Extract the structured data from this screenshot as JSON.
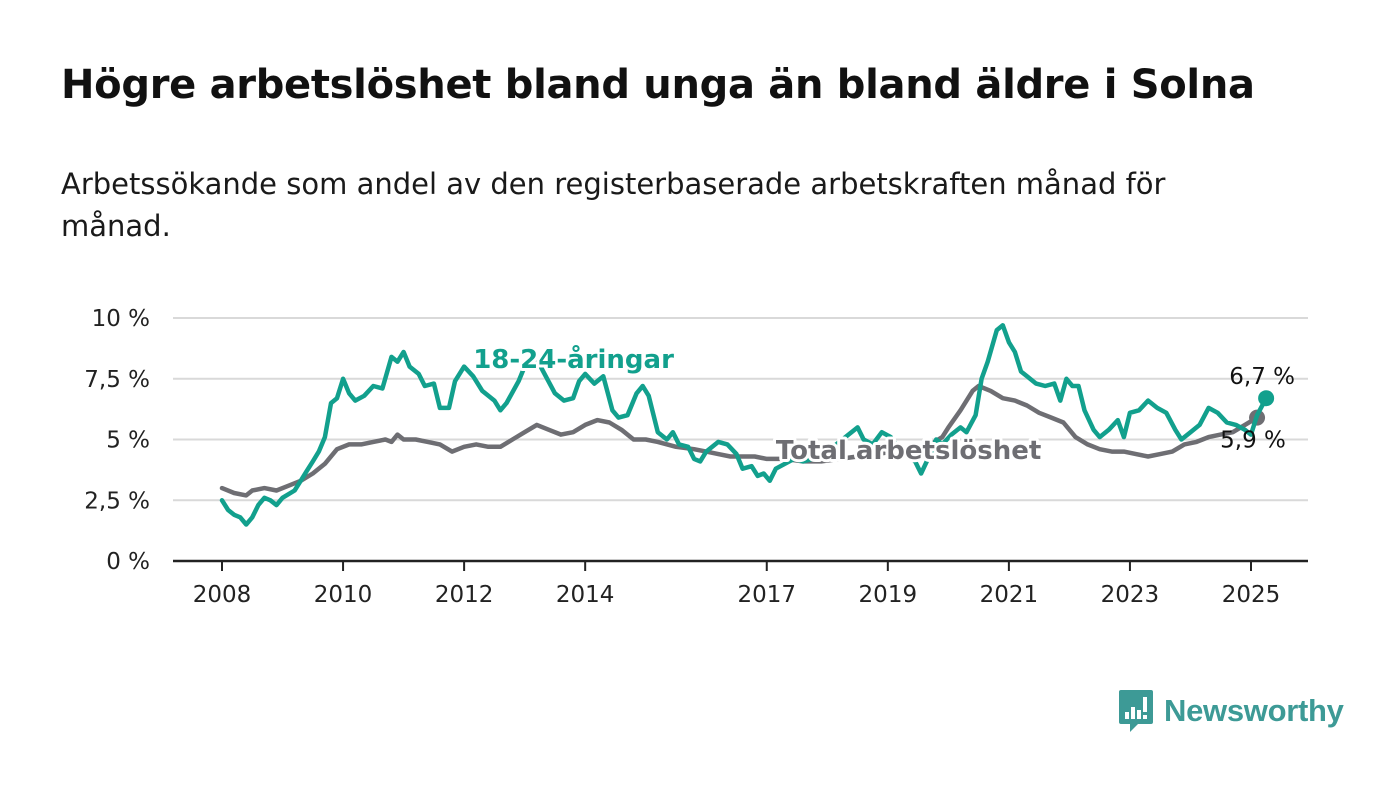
{
  "title": "Högre arbetslöshet bland unga än bland äldre i Solna",
  "subtitle": "Arbetssökande som andel av den registerbaserade arbetskraften månad för månad.",
  "brand": {
    "name": "Newsworthy",
    "color": "#3d9a96"
  },
  "chart_data": {
    "type": "line",
    "y_ticks": [
      {
        "value": 0,
        "label": "0 %"
      },
      {
        "value": 2.5,
        "label": "2,5 %"
      },
      {
        "value": 5,
        "label": "5 %"
      },
      {
        "value": 7.5,
        "label": "7,5 %"
      },
      {
        "value": 10,
        "label": "10 %"
      }
    ],
    "x_ticks": [
      {
        "value": 2008,
        "label": "2008"
      },
      {
        "value": 2010,
        "label": "2010"
      },
      {
        "value": 2012,
        "label": "2012"
      },
      {
        "value": 2014,
        "label": "2014"
      },
      {
        "value": 2017,
        "label": "2017"
      },
      {
        "value": 2019,
        "label": "2019"
      },
      {
        "value": 2021,
        "label": "2021"
      },
      {
        "value": 2023,
        "label": "2023"
      },
      {
        "value": 2025,
        "label": "2025"
      }
    ],
    "xlim": [
      2007.2,
      2025.95
    ],
    "ylim": [
      0,
      10
    ],
    "grid": true,
    "series": [
      {
        "name": "Total arbetslöshet",
        "color": "#6e6e73",
        "end_label": "5,9 %",
        "label_at": [
          2017.15,
          4.2
        ],
        "points": [
          [
            2008.0,
            3.0
          ],
          [
            2008.2,
            2.8
          ],
          [
            2008.4,
            2.7
          ],
          [
            2008.5,
            2.9
          ],
          [
            2008.7,
            3.0
          ],
          [
            2008.9,
            2.9
          ],
          [
            2009.1,
            3.1
          ],
          [
            2009.3,
            3.3
          ],
          [
            2009.5,
            3.6
          ],
          [
            2009.7,
            4.0
          ],
          [
            2009.9,
            4.6
          ],
          [
            2010.1,
            4.8
          ],
          [
            2010.3,
            4.8
          ],
          [
            2010.5,
            4.9
          ],
          [
            2010.7,
            5.0
          ],
          [
            2010.8,
            4.9
          ],
          [
            2010.9,
            5.2
          ],
          [
            2011.0,
            5.0
          ],
          [
            2011.2,
            5.0
          ],
          [
            2011.4,
            4.9
          ],
          [
            2011.6,
            4.8
          ],
          [
            2011.8,
            4.5
          ],
          [
            2012.0,
            4.7
          ],
          [
            2012.2,
            4.8
          ],
          [
            2012.4,
            4.7
          ],
          [
            2012.6,
            4.7
          ],
          [
            2012.8,
            5.0
          ],
          [
            2013.0,
            5.3
          ],
          [
            2013.2,
            5.6
          ],
          [
            2013.4,
            5.4
          ],
          [
            2013.6,
            5.2
          ],
          [
            2013.8,
            5.3
          ],
          [
            2014.0,
            5.6
          ],
          [
            2014.2,
            5.8
          ],
          [
            2014.4,
            5.7
          ],
          [
            2014.6,
            5.4
          ],
          [
            2014.8,
            5.0
          ],
          [
            2015.0,
            5.0
          ],
          [
            2015.2,
            4.9
          ],
          [
            2015.5,
            4.7
          ],
          [
            2015.8,
            4.6
          ],
          [
            2016.0,
            4.5
          ],
          [
            2016.2,
            4.4
          ],
          [
            2016.4,
            4.3
          ],
          [
            2016.6,
            4.3
          ],
          [
            2016.8,
            4.3
          ],
          [
            2017.0,
            4.2
          ],
          [
            2017.3,
            4.2
          ],
          [
            2017.6,
            4.1
          ],
          [
            2017.9,
            4.1
          ],
          [
            2018.2,
            4.2
          ],
          [
            2018.5,
            4.3
          ],
          [
            2018.8,
            4.4
          ],
          [
            2019.1,
            4.5
          ],
          [
            2019.4,
            4.6
          ],
          [
            2019.7,
            4.8
          ],
          [
            2019.9,
            5.1
          ],
          [
            2020.0,
            5.5
          ],
          [
            2020.2,
            6.2
          ],
          [
            2020.4,
            7.0
          ],
          [
            2020.5,
            7.2
          ],
          [
            2020.7,
            7.0
          ],
          [
            2020.9,
            6.7
          ],
          [
            2021.1,
            6.6
          ],
          [
            2021.3,
            6.4
          ],
          [
            2021.5,
            6.1
          ],
          [
            2021.7,
            5.9
          ],
          [
            2021.9,
            5.7
          ],
          [
            2022.1,
            5.1
          ],
          [
            2022.3,
            4.8
          ],
          [
            2022.5,
            4.6
          ],
          [
            2022.7,
            4.5
          ],
          [
            2022.9,
            4.5
          ],
          [
            2023.1,
            4.4
          ],
          [
            2023.3,
            4.3
          ],
          [
            2023.5,
            4.4
          ],
          [
            2023.7,
            4.5
          ],
          [
            2023.9,
            4.8
          ],
          [
            2024.1,
            4.9
          ],
          [
            2024.3,
            5.1
          ],
          [
            2024.5,
            5.2
          ],
          [
            2024.7,
            5.3
          ],
          [
            2024.9,
            5.6
          ],
          [
            2025.1,
            5.9
          ]
        ]
      },
      {
        "name": "18-24-åringar",
        "color": "#12a08d",
        "end_label": "6,7 %",
        "label_at": [
          2012.15,
          7.95
        ],
        "points": [
          [
            2008.0,
            2.5
          ],
          [
            2008.1,
            2.1
          ],
          [
            2008.2,
            1.9
          ],
          [
            2008.3,
            1.8
          ],
          [
            2008.4,
            1.5
          ],
          [
            2008.5,
            1.8
          ],
          [
            2008.6,
            2.3
          ],
          [
            2008.7,
            2.6
          ],
          [
            2008.8,
            2.5
          ],
          [
            2008.9,
            2.3
          ],
          [
            2009.0,
            2.6
          ],
          [
            2009.2,
            2.9
          ],
          [
            2009.3,
            3.3
          ],
          [
            2009.4,
            3.7
          ],
          [
            2009.5,
            4.1
          ],
          [
            2009.6,
            4.5
          ],
          [
            2009.7,
            5.1
          ],
          [
            2009.8,
            6.5
          ],
          [
            2009.9,
            6.7
          ],
          [
            2010.0,
            7.5
          ],
          [
            2010.1,
            6.9
          ],
          [
            2010.2,
            6.6
          ],
          [
            2010.35,
            6.8
          ],
          [
            2010.5,
            7.2
          ],
          [
            2010.65,
            7.1
          ],
          [
            2010.8,
            8.4
          ],
          [
            2010.9,
            8.2
          ],
          [
            2011.0,
            8.6
          ],
          [
            2011.1,
            8.0
          ],
          [
            2011.25,
            7.7
          ],
          [
            2011.35,
            7.2
          ],
          [
            2011.5,
            7.3
          ],
          [
            2011.6,
            6.3
          ],
          [
            2011.75,
            6.3
          ],
          [
            2011.85,
            7.4
          ],
          [
            2012.0,
            8.0
          ],
          [
            2012.15,
            7.6
          ],
          [
            2012.3,
            7.0
          ],
          [
            2012.5,
            6.6
          ],
          [
            2012.6,
            6.2
          ],
          [
            2012.7,
            6.5
          ],
          [
            2012.9,
            7.4
          ],
          [
            2013.0,
            8.0
          ],
          [
            2013.2,
            8.3
          ],
          [
            2013.35,
            7.6
          ],
          [
            2013.5,
            6.9
          ],
          [
            2013.65,
            6.6
          ],
          [
            2013.8,
            6.7
          ],
          [
            2013.9,
            7.4
          ],
          [
            2014.0,
            7.7
          ],
          [
            2014.15,
            7.3
          ],
          [
            2014.3,
            7.6
          ],
          [
            2014.45,
            6.2
          ],
          [
            2014.55,
            5.9
          ],
          [
            2014.7,
            6.0
          ],
          [
            2014.85,
            6.9
          ],
          [
            2014.95,
            7.2
          ],
          [
            2015.05,
            6.8
          ],
          [
            2015.2,
            5.3
          ],
          [
            2015.35,
            5.0
          ],
          [
            2015.45,
            5.3
          ],
          [
            2015.55,
            4.8
          ],
          [
            2015.7,
            4.7
          ],
          [
            2015.8,
            4.2
          ],
          [
            2015.9,
            4.1
          ],
          [
            2016.0,
            4.5
          ],
          [
            2016.2,
            4.9
          ],
          [
            2016.35,
            4.8
          ],
          [
            2016.5,
            4.4
          ],
          [
            2016.6,
            3.8
          ],
          [
            2016.75,
            3.9
          ],
          [
            2016.85,
            3.5
          ],
          [
            2016.95,
            3.6
          ],
          [
            2017.05,
            3.3
          ],
          [
            2017.15,
            3.8
          ],
          [
            2017.3,
            4.0
          ],
          [
            2017.45,
            4.2
          ],
          [
            2017.6,
            4.1
          ],
          [
            2017.75,
            4.2
          ],
          [
            2017.9,
            4.3
          ],
          [
            2018.05,
            4.6
          ],
          [
            2018.2,
            4.9
          ],
          [
            2018.35,
            5.2
          ],
          [
            2018.5,
            5.5
          ],
          [
            2018.6,
            5.0
          ],
          [
            2018.75,
            4.8
          ],
          [
            2018.9,
            5.3
          ],
          [
            2019.05,
            5.1
          ],
          [
            2019.15,
            4.7
          ],
          [
            2019.3,
            4.4
          ],
          [
            2019.45,
            4.1
          ],
          [
            2019.55,
            3.6
          ],
          [
            2019.7,
            4.4
          ],
          [
            2019.8,
            5.0
          ],
          [
            2019.9,
            4.8
          ],
          [
            2020.05,
            5.2
          ],
          [
            2020.2,
            5.5
          ],
          [
            2020.3,
            5.3
          ],
          [
            2020.45,
            6.0
          ],
          [
            2020.55,
            7.5
          ],
          [
            2020.65,
            8.2
          ],
          [
            2020.8,
            9.5
          ],
          [
            2020.9,
            9.7
          ],
          [
            2021.0,
            9.0
          ],
          [
            2021.1,
            8.6
          ],
          [
            2021.2,
            7.8
          ],
          [
            2021.3,
            7.6
          ],
          [
            2021.45,
            7.3
          ],
          [
            2021.6,
            7.2
          ],
          [
            2021.75,
            7.3
          ],
          [
            2021.85,
            6.6
          ],
          [
            2021.95,
            7.5
          ],
          [
            2022.05,
            7.2
          ],
          [
            2022.15,
            7.2
          ],
          [
            2022.25,
            6.2
          ],
          [
            2022.4,
            5.4
          ],
          [
            2022.5,
            5.1
          ],
          [
            2022.65,
            5.4
          ],
          [
            2022.8,
            5.8
          ],
          [
            2022.9,
            5.1
          ],
          [
            2023.0,
            6.1
          ],
          [
            2023.15,
            6.2
          ],
          [
            2023.3,
            6.6
          ],
          [
            2023.45,
            6.3
          ],
          [
            2023.6,
            6.1
          ],
          [
            2023.75,
            5.4
          ],
          [
            2023.85,
            5.0
          ],
          [
            2024.0,
            5.3
          ],
          [
            2024.15,
            5.6
          ],
          [
            2024.3,
            6.3
          ],
          [
            2024.45,
            6.1
          ],
          [
            2024.6,
            5.7
          ],
          [
            2024.75,
            5.6
          ],
          [
            2024.9,
            5.4
          ],
          [
            2025.0,
            5.2
          ],
          [
            2025.1,
            6.0
          ],
          [
            2025.25,
            6.7
          ]
        ]
      }
    ]
  }
}
